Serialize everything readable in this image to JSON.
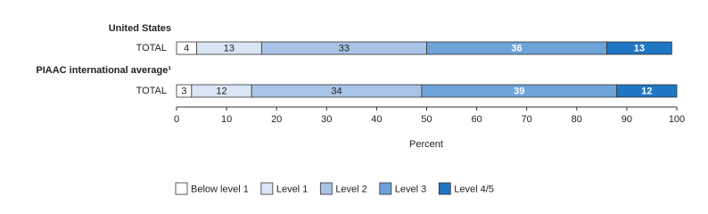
{
  "chart_data": {
    "type": "bar",
    "orientation": "horizontal",
    "stacked": true,
    "groups": [
      "United States",
      "PIAAC international average¹"
    ],
    "categories": [
      "TOTAL",
      "TOTAL"
    ],
    "series": [
      {
        "name": "Below level 1",
        "color": "#ffffff",
        "label_color": "#222222",
        "values": [
          4,
          3
        ]
      },
      {
        "name": "Level 1",
        "color": "#d9e5f4",
        "label_color": "#222222",
        "values": [
          13,
          12
        ]
      },
      {
        "name": "Level 2",
        "color": "#a8c3e6",
        "label_color": "#222222",
        "values": [
          33,
          34
        ]
      },
      {
        "name": "Level 3",
        "color": "#6ea3d9",
        "label_color": "#ffffff",
        "values": [
          36,
          39
        ]
      },
      {
        "name": "Level 4/5",
        "color": "#1f76c2",
        "label_color": "#ffffff",
        "values": [
          13,
          12
        ]
      }
    ],
    "xlim": [
      0,
      100
    ],
    "xticks": [
      0,
      10,
      20,
      30,
      40,
      50,
      60,
      70,
      80,
      90,
      100
    ],
    "xlabel": "Percent",
    "legend": "bottom"
  }
}
